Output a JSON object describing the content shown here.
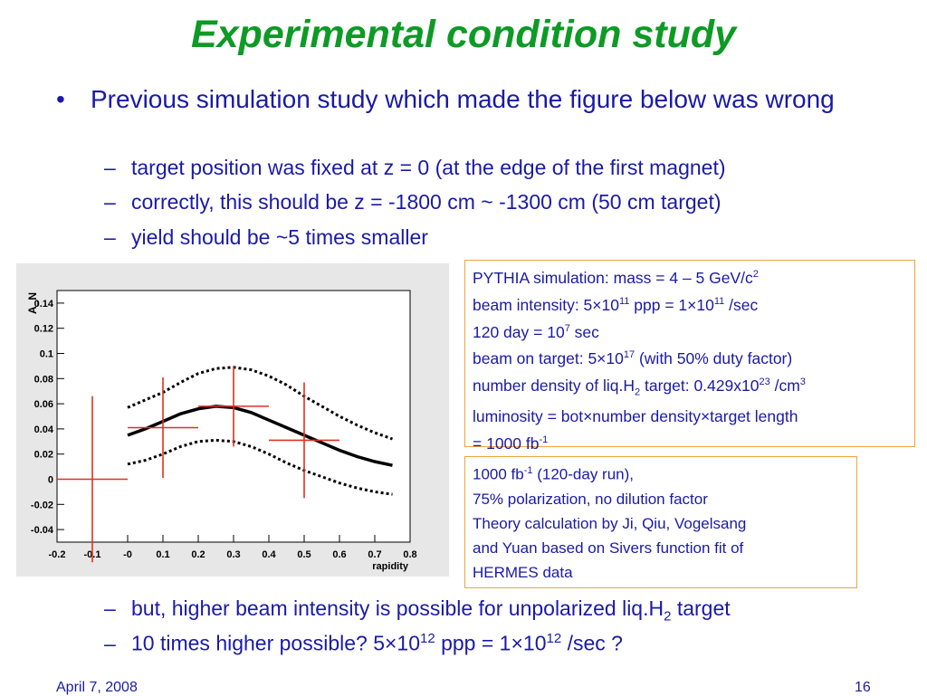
{
  "slide": {
    "title": "Experimental condition study",
    "bullet_main": {
      "marker": "•",
      "text": "Previous simulation study which made the figure below was wrong"
    },
    "sub_bullets_top": [
      {
        "dash": "–",
        "text": "target position was fixed at z = 0 (at the edge of the first magnet)"
      },
      {
        "dash": "–",
        "text": "correctly, this should be z = -1800 cm ~ -1300 cm (50 cm target)"
      },
      {
        "dash": "–",
        "text": "yield should be ~5 times smaller"
      }
    ],
    "sub_bullet_bottom_1": {
      "dash": "–",
      "pre": "but, higher beam intensity is possible for unpolarized liq.H",
      "sub": "2",
      "post": " target"
    },
    "sub_bullet_bottom_2": {
      "dash": "–",
      "p1": "10 times higher possible? 5×10",
      "s1": "12",
      "p2": " ppp = 1×10",
      "s2": "12",
      "p3": " /sec ?"
    },
    "box1": {
      "l1_pre": "PYTHIA simulation: mass = 4 – 5 GeV/c",
      "l1_sup": "2",
      "l2_pre": "beam intensity: 5×10",
      "l2_sup1": "11",
      "l2_mid": " ppp = 1×10",
      "l2_sup2": "11",
      "l2_post": " /sec",
      "l3_pre": "120 day = 10",
      "l3_sup": "7",
      "l3_post": " sec",
      "l4_pre": "beam on target: 5×10",
      "l4_sup": "17",
      "l4_post": " (with 50% duty factor)",
      "l5_pre": "number density of liq.H",
      "l5_sub": "2",
      "l5_mid": " target: 0.429x10",
      "l5_sup": "23",
      "l5_mid2": " /cm",
      "l5_sup2": "3",
      "l6": "luminosity = bot×number density×target length",
      "l7_pre": "= 1000 fb",
      "l7_sup": "-1"
    },
    "box2": {
      "l1_pre": "1000 fb",
      "l1_sup": "-1",
      "l1_post": " (120-day run),",
      "l2": "75% polarization, no dilution factor",
      "l3": "Theory calculation by Ji, Qiu, Vogelsang",
      "l4": "and Yuan based on Sivers function fit of",
      "l5": "HERMES data"
    },
    "footer": {
      "date": "April 7, 2008",
      "page": "16"
    }
  },
  "chart_data": {
    "type": "scatter",
    "title": "",
    "xlabel": "rapidity",
    "ylabel": "A_N",
    "xlim": [
      -0.2,
      0.8
    ],
    "ylim": [
      -0.05,
      0.15
    ],
    "x_ticks": [
      "-0.2",
      "-0.1",
      "-0",
      "0.1",
      "0.2",
      "0.3",
      "0.4",
      "0.5",
      "0.6",
      "0.7",
      "0.8"
    ],
    "y_ticks": [
      "-0.04",
      "-0.02",
      "0",
      "0.02",
      "0.04",
      "0.06",
      "0.08",
      "0.1",
      "0.12",
      "0.14"
    ],
    "points": [
      {
        "x": -0.1,
        "y": 0.0,
        "xerr": 0.1,
        "yerr_low": 0.066,
        "yerr_high": 0.066
      },
      {
        "x": 0.1,
        "y": 0.041,
        "xerr": 0.1,
        "yerr_low": 0.04,
        "yerr_high": 0.04
      },
      {
        "x": 0.3,
        "y": 0.058,
        "xerr": 0.1,
        "yerr_low": 0.032,
        "yerr_high": 0.032
      },
      {
        "x": 0.5,
        "y": 0.031,
        "xerr": 0.1,
        "yerr_low": 0.046,
        "yerr_high": 0.046
      }
    ],
    "series": [
      {
        "style": "solid",
        "x": [
          0.0,
          0.05,
          0.1,
          0.15,
          0.2,
          0.25,
          0.3,
          0.35,
          0.4,
          0.45,
          0.5,
          0.55,
          0.6,
          0.65,
          0.7,
          0.75
        ],
        "y": [
          0.035,
          0.04,
          0.046,
          0.052,
          0.056,
          0.058,
          0.057,
          0.053,
          0.047,
          0.041,
          0.035,
          0.029,
          0.023,
          0.018,
          0.014,
          0.011
        ]
      },
      {
        "style": "dotted",
        "x": [
          0.0,
          0.05,
          0.1,
          0.15,
          0.2,
          0.25,
          0.3,
          0.35,
          0.4,
          0.45,
          0.5,
          0.55,
          0.6,
          0.65,
          0.7,
          0.75
        ],
        "y": [
          0.057,
          0.063,
          0.069,
          0.077,
          0.084,
          0.088,
          0.089,
          0.087,
          0.082,
          0.075,
          0.066,
          0.058,
          0.05,
          0.043,
          0.037,
          0.032
        ]
      },
      {
        "style": "dotted",
        "x": [
          0.0,
          0.05,
          0.1,
          0.15,
          0.2,
          0.25,
          0.3,
          0.35,
          0.4,
          0.45,
          0.5,
          0.55,
          0.6,
          0.65,
          0.7,
          0.75
        ],
        "y": [
          0.012,
          0.015,
          0.02,
          0.026,
          0.03,
          0.031,
          0.03,
          0.026,
          0.02,
          0.013,
          0.007,
          0.002,
          -0.003,
          -0.007,
          -0.01,
          -0.012
        ]
      }
    ],
    "colors": {
      "points": "#e03020",
      "curves": "#000000",
      "background": "#e7e7e7",
      "frame": "#ffffff"
    }
  }
}
